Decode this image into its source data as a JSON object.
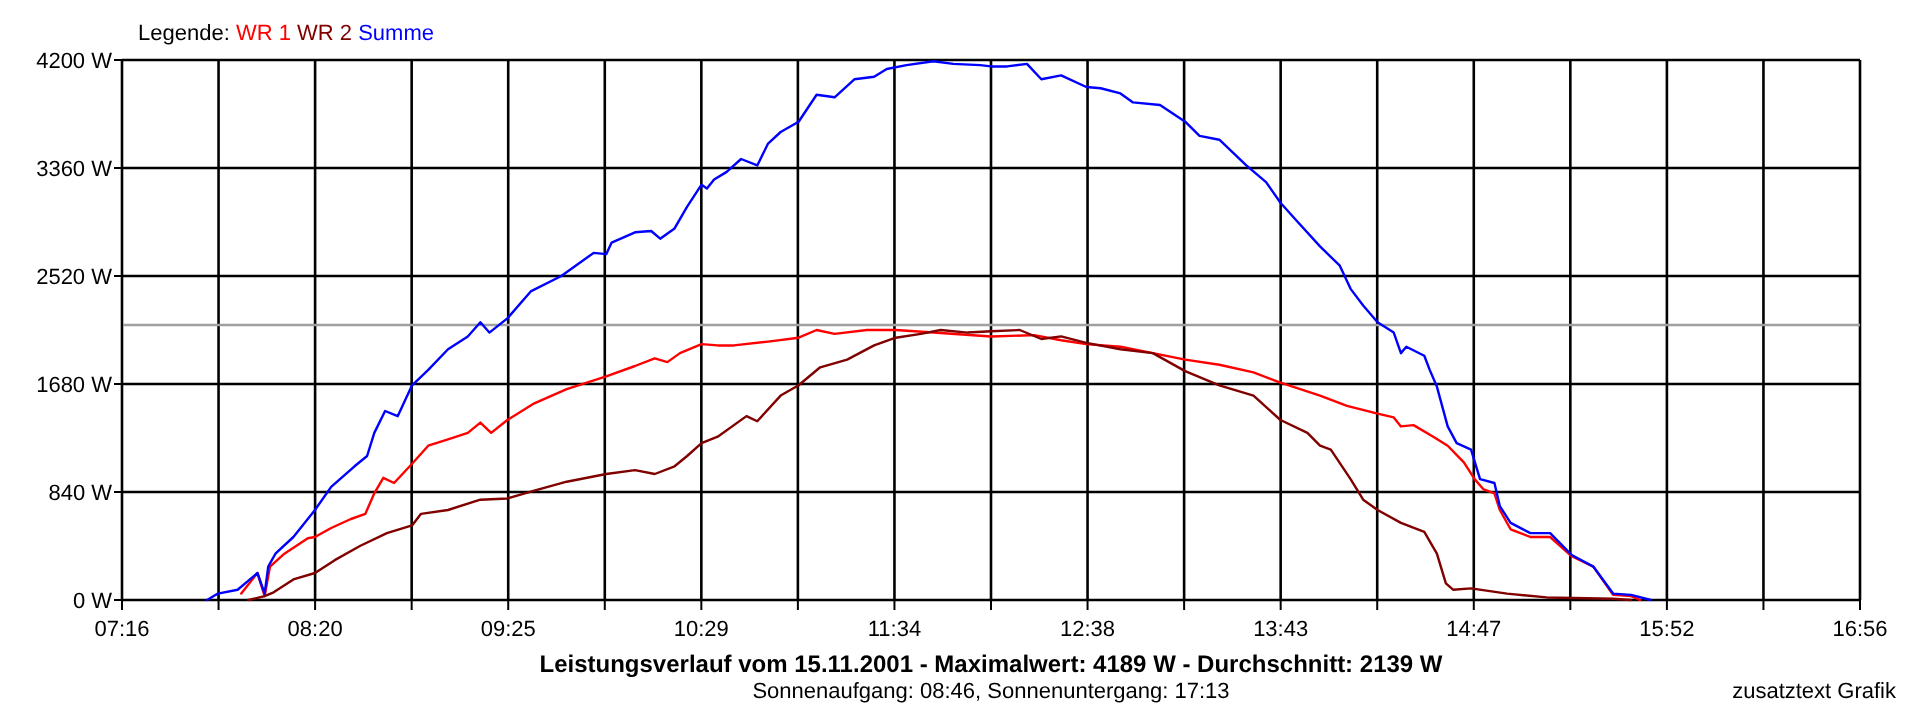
{
  "chart_data": {
    "type": "line",
    "title": "Leistungsverlauf vom 15.11.2001 - Maximalwert: 4189 W - Durchschnitt: 2139 W",
    "subtitle": "Sonnenaufgang: 08:46, Sonnenuntergang: 17:13",
    "annotations": [
      "zusatztext Grafik"
    ],
    "legend_title": "Legende:",
    "legend": "top left",
    "grid": true,
    "xlim": [
      7.2667,
      16.9333
    ],
    "xticks": [
      {
        "value": 7.2667,
        "label": "07:16"
      },
      {
        "value": 7.8037,
        "label": null
      },
      {
        "value": 8.3407,
        "label": "08:20"
      },
      {
        "value": 8.8778,
        "label": null
      },
      {
        "value": 9.4148,
        "label": "09:25"
      },
      {
        "value": 9.9519,
        "label": null
      },
      {
        "value": 10.4889,
        "label": "10:29"
      },
      {
        "value": 11.0259,
        "label": null
      },
      {
        "value": 11.563,
        "label": "11:34"
      },
      {
        "value": 12.1,
        "label": null
      },
      {
        "value": 12.637,
        "label": "12:38"
      },
      {
        "value": 13.1741,
        "label": null
      },
      {
        "value": 13.7111,
        "label": "13:43"
      },
      {
        "value": 14.2481,
        "label": null
      },
      {
        "value": 14.7852,
        "label": "14:47"
      },
      {
        "value": 15.3222,
        "label": null
      },
      {
        "value": 15.8593,
        "label": "15:52"
      },
      {
        "value": 16.3963,
        "label": null
      },
      {
        "value": 16.9333,
        "label": "16:56"
      }
    ],
    "ylim": [
      0,
      4200
    ],
    "yticks": [
      {
        "value": 0,
        "label": "0 W"
      },
      {
        "value": 840,
        "label": "840 W"
      },
      {
        "value": 1680,
        "label": "1680 W"
      },
      {
        "value": 2520,
        "label": "2520 W"
      },
      {
        "value": 3360,
        "label": "3360 W"
      },
      {
        "value": 4200,
        "label": "4200 W"
      }
    ],
    "ref_lines": [
      {
        "axis": "y",
        "value": 2139,
        "color": "#a0a0a0"
      }
    ],
    "series": [
      {
        "name": "WR 1",
        "color": "#ff0000",
        "x": [
          7.93,
          8.02,
          8.06,
          8.09,
          8.17,
          8.3,
          8.34,
          8.43,
          8.54,
          8.62,
          8.67,
          8.72,
          8.78,
          8.88,
          8.97,
          9.08,
          9.19,
          9.26,
          9.32,
          9.41,
          9.56,
          9.74,
          9.96,
          10.12,
          10.23,
          10.3,
          10.37,
          10.49,
          10.58,
          10.67,
          10.86,
          11.03,
          11.13,
          11.23,
          11.41,
          11.57,
          11.78,
          12.1,
          12.34,
          12.49,
          12.63,
          12.82,
          13.0,
          13.18,
          13.37,
          13.56,
          13.71,
          13.82,
          13.93,
          14.08,
          14.25,
          14.34,
          14.38,
          14.45,
          14.56,
          14.64,
          14.73,
          14.79,
          14.84,
          14.9,
          14.93,
          14.99,
          15.1,
          15.21,
          15.33,
          15.45,
          15.56,
          15.66,
          15.71
        ],
        "values": [
          50,
          210,
          30,
          260,
          360,
          480,
          490,
          560,
          630,
          670,
          830,
          950,
          910,
          1060,
          1200,
          1250,
          1300,
          1380,
          1300,
          1400,
          1530,
          1640,
          1740,
          1820,
          1880,
          1850,
          1920,
          1990,
          1980,
          1980,
          2010,
          2040,
          2100,
          2070,
          2100,
          2100,
          2080,
          2050,
          2060,
          2020,
          1990,
          1970,
          1920,
          1870,
          1830,
          1770,
          1690,
          1640,
          1590,
          1510,
          1450,
          1420,
          1350,
          1360,
          1270,
          1200,
          1070,
          940,
          860,
          830,
          700,
          550,
          490,
          490,
          340,
          260,
          40,
          30,
          0
        ]
      },
      {
        "name": "WR 2",
        "color": "#800000",
        "x": [
          7.97,
          8.06,
          8.11,
          8.22,
          8.34,
          8.45,
          8.59,
          8.74,
          8.88,
          8.93,
          9.08,
          9.26,
          9.41,
          9.56,
          9.74,
          9.96,
          10.12,
          10.23,
          10.34,
          10.41,
          10.49,
          10.58,
          10.74,
          10.8,
          10.93,
          11.03,
          11.15,
          11.3,
          11.45,
          11.57,
          11.71,
          11.82,
          11.97,
          12.1,
          12.26,
          12.38,
          12.49,
          12.63,
          12.82,
          13.0,
          13.18,
          13.37,
          13.56,
          13.71,
          13.86,
          13.93,
          13.99,
          14.1,
          14.17,
          14.25,
          14.38,
          14.51,
          14.58,
          14.63,
          14.67,
          14.77,
          14.97,
          15.19,
          15.56,
          15.66
        ],
        "values": [
          0,
          30,
          60,
          160,
          210,
          310,
          420,
          520,
          580,
          670,
          700,
          780,
          790,
          850,
          920,
          980,
          1010,
          980,
          1040,
          1120,
          1220,
          1270,
          1430,
          1390,
          1590,
          1670,
          1810,
          1870,
          1980,
          2040,
          2070,
          2100,
          2080,
          2090,
          2100,
          2030,
          2050,
          2000,
          1950,
          1920,
          1780,
          1670,
          1590,
          1400,
          1300,
          1200,
          1170,
          940,
          780,
          700,
          600,
          530,
          360,
          130,
          80,
          90,
          50,
          20,
          10,
          0
        ]
      },
      {
        "name": "Summe",
        "color": "#0000ff",
        "x": [
          7.74,
          7.8,
          7.91,
          8.02,
          8.06,
          8.08,
          8.12,
          8.22,
          8.34,
          8.43,
          8.56,
          8.63,
          8.67,
          8.73,
          8.8,
          8.88,
          8.97,
          9.08,
          9.19,
          9.26,
          9.31,
          9.41,
          9.54,
          9.71,
          9.89,
          9.96,
          9.99,
          10.12,
          10.21,
          10.26,
          10.34,
          10.41,
          10.49,
          10.52,
          10.56,
          10.63,
          10.71,
          10.8,
          10.86,
          10.93,
          11.03,
          11.13,
          11.23,
          11.34,
          11.45,
          11.52,
          11.63,
          11.78,
          11.89,
          12.04,
          12.1,
          12.19,
          12.3,
          12.38,
          12.49,
          12.63,
          12.71,
          12.82,
          12.89,
          13.04,
          13.18,
          13.26,
          13.37,
          13.52,
          13.63,
          13.71,
          13.8,
          13.93,
          14.04,
          14.1,
          14.17,
          14.25,
          14.34,
          14.38,
          14.41,
          14.51,
          14.54,
          14.58,
          14.64,
          14.69,
          14.77,
          14.82,
          14.9,
          14.93,
          14.99,
          15.1,
          15.21,
          15.33,
          15.45,
          15.56,
          15.66,
          15.77
        ],
        "values": [
          0,
          50,
          80,
          210,
          50,
          260,
          360,
          490,
          700,
          880,
          1040,
          1120,
          1300,
          1470,
          1430,
          1670,
          1790,
          1950,
          2050,
          2160,
          2080,
          2190,
          2400,
          2520,
          2700,
          2690,
          2780,
          2860,
          2870,
          2810,
          2890,
          3060,
          3230,
          3200,
          3270,
          3330,
          3430,
          3380,
          3550,
          3640,
          3720,
          3930,
          3910,
          4050,
          4070,
          4130,
          4160,
          4190,
          4170,
          4160,
          4150,
          4150,
          4170,
          4050,
          4080,
          3990,
          3980,
          3940,
          3870,
          3850,
          3720,
          3610,
          3580,
          3380,
          3250,
          3090,
          2950,
          2750,
          2600,
          2420,
          2290,
          2160,
          2080,
          1920,
          1970,
          1900,
          1790,
          1660,
          1350,
          1220,
          1170,
          940,
          910,
          730,
          600,
          520,
          520,
          350,
          260,
          50,
          40,
          0
        ]
      }
    ]
  }
}
